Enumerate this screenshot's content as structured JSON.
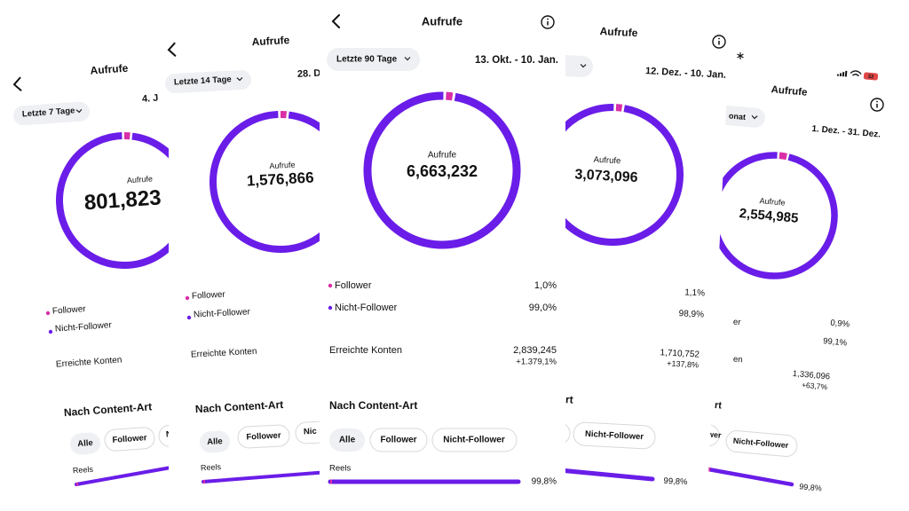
{
  "panels": [
    {
      "title": "Aufrufe",
      "range_button": "Letzte 7 Tage",
      "date_range": "4. J",
      "ring_label": "Aufrufe",
      "total": "801,823",
      "legend": [
        "Follower",
        "Nicht-Follower"
      ],
      "reached_label": "Erreichte Konten",
      "section_title": "Nach Content-Art",
      "filters": [
        "Alle",
        "Follower",
        "Nicht"
      ],
      "reels_label": "Reels"
    },
    {
      "title": "Aufrufe",
      "range_button": "Letzte 14 Tage",
      "date_range": "28. D",
      "ring_label": "Aufrufe",
      "total": "1,576,866",
      "legend": [
        "Follower",
        "Nicht-Follower"
      ],
      "reached_label": "Erreichte Konten",
      "section_title": "Nach Content-Art",
      "filters": [
        "Alle",
        "Follower",
        "Nic"
      ],
      "reels_label": "Reels"
    },
    {
      "title": "Aufrufe",
      "range_button": "Letzte 90 Tage",
      "date_range": "13. Okt. - 10. Jan.",
      "ring_label": "Aufrufe",
      "total": "6,663,232",
      "legend": [
        "Follower",
        "Nicht-Follower"
      ],
      "shares": [
        "1,0%",
        "99,0%"
      ],
      "reached_label": "Erreichte Konten",
      "reached_value": "2,839,245",
      "reached_change": "+1.379,1%",
      "section_title": "Nach Content-Art",
      "filters": [
        "Alle",
        "Follower",
        "Nicht-Follower"
      ],
      "reels_label": "Reels",
      "reels_share": "99,8%"
    },
    {
      "title": "Aufrufe",
      "date_range": "12. Dez. - 10. Jan.",
      "ring_label": "Aufrufe",
      "total": "3,073,096",
      "shares": [
        "1,1%",
        "98,9%"
      ],
      "reached_value": "1,710,752",
      "reached_change": "+137,8%",
      "section_title": "rt",
      "filters": [
        "Nicht-Follower"
      ],
      "reels_share": "99,8%"
    },
    {
      "status_battery": "32",
      "title": "Aufrufe",
      "range_button": "onat",
      "date_range": "1. Dez. - 31. Dez.",
      "ring_label": "Aufrufe",
      "total": "2,554,985",
      "legend": [
        "er"
      ],
      "shares": [
        "0,9%",
        "99,1%"
      ],
      "reached_label": "en",
      "reached_value": "1,336,096",
      "reached_change": "+63,7%",
      "section_title": "rt",
      "filters": [
        "wer",
        "Nicht-Follower"
      ],
      "reels_share": "99,8%"
    }
  ]
}
